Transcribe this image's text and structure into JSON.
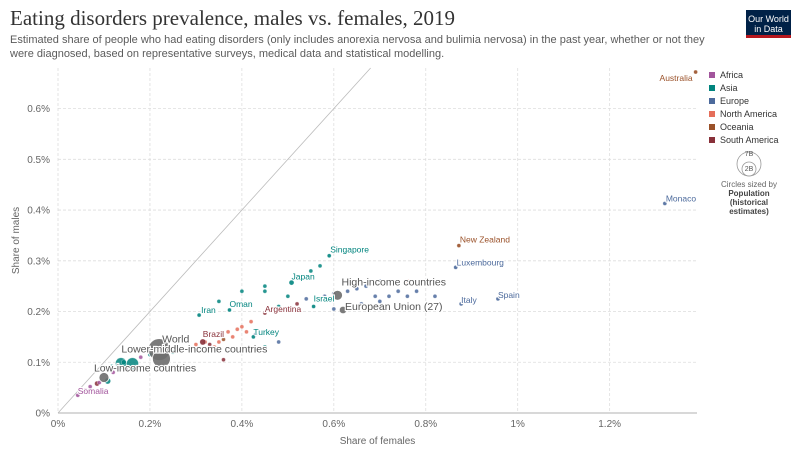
{
  "header": {
    "title": "Eating disorders prevalence, males vs. females, 2019",
    "subtitle": "Estimated share of people who had eating disorders (only includes anorexia nervosa and bulimia nervosa) in the past year, whether or not they were diagnosed, based on representative surveys, medical data and statistical modelling.",
    "logo_line1": "Our World",
    "logo_line2": "in Data"
  },
  "colors": {
    "Africa": "#a2559c",
    "Asia": "#00847e",
    "Europe": "#4c6a9c",
    "North America": "#e56e5a",
    "Oceania": "#9a5129",
    "South America": "#883039",
    "aggregate": "#6d6d6d"
  },
  "legend": {
    "items": [
      "Africa",
      "Asia",
      "Europe",
      "North America",
      "Oceania",
      "South America"
    ]
  },
  "size_legend": {
    "big_label": "7B",
    "small_label": "2B",
    "caption": "Circles sized by",
    "bold_line1": "Population",
    "bold_line2": "(historical",
    "bold_line3": "estimates)"
  },
  "chart_data": {
    "type": "scatter",
    "title": "Eating disorders prevalence, males vs. females, 2019",
    "xlabel": "Share of females",
    "ylabel": "Share of males",
    "xlim": [
      0,
      1.39
    ],
    "ylim": [
      0,
      0.68
    ],
    "xticks": [
      0,
      0.2,
      0.4,
      0.6,
      0.8,
      1.0,
      1.2
    ],
    "xtick_labels": [
      "0%",
      "0.2%",
      "0.4%",
      "0.6%",
      "0.8%",
      "1%",
      "1.2%"
    ],
    "yticks": [
      0,
      0.1,
      0.2,
      0.3,
      0.4,
      0.5,
      0.6
    ],
    "ytick_labels": [
      "0%",
      "0.1%",
      "0.2%",
      "0.3%",
      "0.4%",
      "0.5%",
      "0.6%"
    ],
    "grid": true,
    "legend_position": "right",
    "labeled_points": [
      {
        "label": "Australia",
        "x": 1.387,
        "y": 0.672,
        "region": "Oceania",
        "r": 2
      },
      {
        "label": "Monaco",
        "x": 1.32,
        "y": 0.413,
        "region": "Europe",
        "r": 2
      },
      {
        "label": "New Zealand",
        "x": 0.872,
        "y": 0.33,
        "region": "Oceania",
        "r": 2
      },
      {
        "label": "Singapore",
        "x": 0.59,
        "y": 0.31,
        "region": "Asia",
        "r": 2
      },
      {
        "label": "Luxembourg",
        "x": 0.865,
        "y": 0.287,
        "region": "Europe",
        "r": 2
      },
      {
        "label": "Japan",
        "x": 0.508,
        "y": 0.257,
        "region": "Asia",
        "r": 2.5
      },
      {
        "label": "High-income countries",
        "x": 0.608,
        "y": 0.232,
        "region": "aggregate",
        "r": 5
      },
      {
        "label": "Spain",
        "x": 0.957,
        "y": 0.225,
        "region": "Europe",
        "r": 2
      },
      {
        "label": "Italy",
        "x": 0.877,
        "y": 0.215,
        "region": "Europe",
        "r": 2
      },
      {
        "label": "Israel",
        "x": 0.556,
        "y": 0.21,
        "region": "Asia",
        "r": 2
      },
      {
        "label": "European Union (27)",
        "x": 0.62,
        "y": 0.203,
        "region": "aggregate",
        "r": 3.5
      },
      {
        "label": "Oman",
        "x": 0.373,
        "y": 0.203,
        "region": "Asia",
        "r": 2
      },
      {
        "label": "Argentina",
        "x": 0.45,
        "y": 0.197,
        "region": "South America",
        "r": 2
      },
      {
        "label": "Iran",
        "x": 0.307,
        "y": 0.193,
        "region": "Asia",
        "r": 2
      },
      {
        "label": "Turkey",
        "x": 0.425,
        "y": 0.15,
        "region": "Asia",
        "r": 2
      },
      {
        "label": "Brazil",
        "x": 0.315,
        "y": 0.14,
        "region": "South America",
        "r": 3
      },
      {
        "label": "World",
        "x": 0.22,
        "y": 0.125,
        "region": "aggregate",
        "r": 11
      },
      {
        "label": "Lower-middle-income countries",
        "x": 0.225,
        "y": 0.107,
        "region": "aggregate",
        "r": 9
      },
      {
        "label": "Low-income countries",
        "x": 0.1,
        "y": 0.07,
        "region": "aggregate",
        "r": 5
      },
      {
        "label": "Somalia",
        "x": 0.043,
        "y": 0.035,
        "region": "Africa",
        "r": 2
      }
    ],
    "points": [
      {
        "x": 0.137,
        "y": 0.098,
        "region": "Asia",
        "r": 5.5
      },
      {
        "x": 0.162,
        "y": 0.097,
        "region": "Asia",
        "r": 6
      },
      {
        "x": 0.143,
        "y": 0.1,
        "region": "Asia",
        "r": 2.5
      },
      {
        "x": 0.117,
        "y": 0.092,
        "region": "Asia",
        "r": 2
      },
      {
        "x": 0.108,
        "y": 0.063,
        "region": "Asia",
        "r": 3
      },
      {
        "x": 0.085,
        "y": 0.058,
        "region": "South America",
        "r": 2.5
      },
      {
        "x": 0.07,
        "y": 0.052,
        "region": "Africa",
        "r": 2
      },
      {
        "x": 0.09,
        "y": 0.06,
        "region": "Africa",
        "r": 2
      },
      {
        "x": 0.06,
        "y": 0.045,
        "region": "Africa",
        "r": 2
      },
      {
        "x": 0.12,
        "y": 0.08,
        "region": "Africa",
        "r": 2
      },
      {
        "x": 0.15,
        "y": 0.085,
        "region": "Africa",
        "r": 2
      },
      {
        "x": 0.18,
        "y": 0.11,
        "region": "Africa",
        "r": 2
      },
      {
        "x": 0.2,
        "y": 0.115,
        "region": "Asia",
        "r": 2
      },
      {
        "x": 0.25,
        "y": 0.12,
        "region": "Asia",
        "r": 2
      },
      {
        "x": 0.27,
        "y": 0.125,
        "region": "North America",
        "r": 2
      },
      {
        "x": 0.3,
        "y": 0.135,
        "region": "North America",
        "r": 2
      },
      {
        "x": 0.32,
        "y": 0.14,
        "region": "North America",
        "r": 2
      },
      {
        "x": 0.33,
        "y": 0.135,
        "region": "South America",
        "r": 2
      },
      {
        "x": 0.34,
        "y": 0.13,
        "region": "North America",
        "r": 2
      },
      {
        "x": 0.35,
        "y": 0.14,
        "region": "North America",
        "r": 2
      },
      {
        "x": 0.36,
        "y": 0.145,
        "region": "Oceania",
        "r": 2
      },
      {
        "x": 0.37,
        "y": 0.16,
        "region": "North America",
        "r": 2
      },
      {
        "x": 0.39,
        "y": 0.165,
        "region": "North America",
        "r": 2
      },
      {
        "x": 0.4,
        "y": 0.17,
        "region": "North America",
        "r": 2
      },
      {
        "x": 0.41,
        "y": 0.16,
        "region": "North America",
        "r": 2
      },
      {
        "x": 0.42,
        "y": 0.18,
        "region": "North America",
        "r": 2
      },
      {
        "x": 0.38,
        "y": 0.15,
        "region": "North America",
        "r": 2
      },
      {
        "x": 0.36,
        "y": 0.105,
        "region": "South America",
        "r": 2
      },
      {
        "x": 0.45,
        "y": 0.13,
        "region": "Asia",
        "r": 2
      },
      {
        "x": 0.35,
        "y": 0.22,
        "region": "Asia",
        "r": 2
      },
      {
        "x": 0.4,
        "y": 0.24,
        "region": "Asia",
        "r": 2
      },
      {
        "x": 0.45,
        "y": 0.25,
        "region": "Asia",
        "r": 2
      },
      {
        "x": 0.45,
        "y": 0.24,
        "region": "Asia",
        "r": 2
      },
      {
        "x": 0.5,
        "y": 0.23,
        "region": "Asia",
        "r": 2
      },
      {
        "x": 0.55,
        "y": 0.28,
        "region": "Asia",
        "r": 2
      },
      {
        "x": 0.57,
        "y": 0.29,
        "region": "Asia",
        "r": 2
      },
      {
        "x": 0.48,
        "y": 0.21,
        "region": "Asia",
        "r": 2
      },
      {
        "x": 0.52,
        "y": 0.215,
        "region": "South America",
        "r": 2
      },
      {
        "x": 0.54,
        "y": 0.225,
        "region": "Europe",
        "r": 2
      },
      {
        "x": 0.58,
        "y": 0.23,
        "region": "Europe",
        "r": 2
      },
      {
        "x": 0.6,
        "y": 0.235,
        "region": "Europe",
        "r": 2
      },
      {
        "x": 0.63,
        "y": 0.24,
        "region": "Europe",
        "r": 2
      },
      {
        "x": 0.65,
        "y": 0.245,
        "region": "Europe",
        "r": 2
      },
      {
        "x": 0.67,
        "y": 0.25,
        "region": "Europe",
        "r": 2
      },
      {
        "x": 0.69,
        "y": 0.23,
        "region": "Europe",
        "r": 2
      },
      {
        "x": 0.7,
        "y": 0.26,
        "region": "Europe",
        "r": 2
      },
      {
        "x": 0.72,
        "y": 0.23,
        "region": "Europe",
        "r": 2
      },
      {
        "x": 0.74,
        "y": 0.24,
        "region": "Europe",
        "r": 2
      },
      {
        "x": 0.76,
        "y": 0.23,
        "region": "Europe",
        "r": 2
      },
      {
        "x": 0.76,
        "y": 0.26,
        "region": "North America",
        "r": 2
      },
      {
        "x": 0.78,
        "y": 0.24,
        "region": "Europe",
        "r": 2
      },
      {
        "x": 0.8,
        "y": 0.26,
        "region": "Europe",
        "r": 2
      },
      {
        "x": 0.82,
        "y": 0.23,
        "region": "Europe",
        "r": 2
      },
      {
        "x": 0.7,
        "y": 0.22,
        "region": "Europe",
        "r": 2
      },
      {
        "x": 0.66,
        "y": 0.215,
        "region": "Europe",
        "r": 2
      },
      {
        "x": 0.6,
        "y": 0.205,
        "region": "Europe",
        "r": 2
      },
      {
        "x": 0.48,
        "y": 0.14,
        "region": "Europe",
        "r": 2
      },
      {
        "x": 0.43,
        "y": 0.155,
        "region": "Europe",
        "r": 2
      }
    ]
  }
}
